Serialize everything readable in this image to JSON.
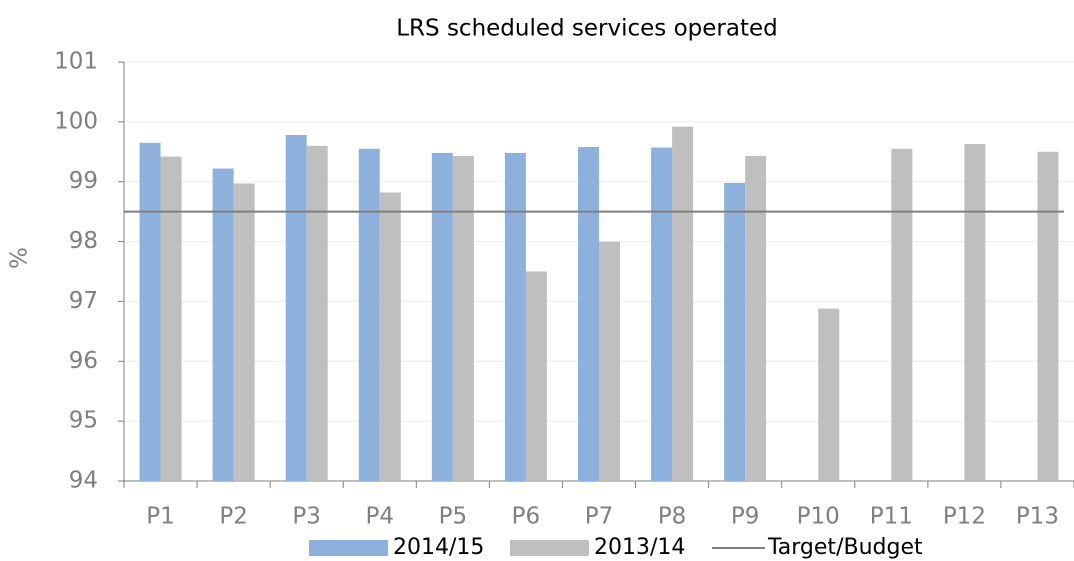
{
  "chart_data": {
    "type": "bar",
    "title": "LRS scheduled services operated",
    "y_label": "%",
    "categories": [
      "P1",
      "P2",
      "P3",
      "P4",
      "P5",
      "P6",
      "P7",
      "P8",
      "P9",
      "P10",
      "P11",
      "P12",
      "P13"
    ],
    "series": [
      {
        "name": "2014/15",
        "color": "#8eb0dc",
        "values": [
          99.65,
          99.22,
          99.78,
          99.55,
          99.48,
          99.48,
          99.58,
          99.57,
          98.98,
          null,
          null,
          null,
          null
        ]
      },
      {
        "name": "2013/14",
        "color": "#bfbfbf",
        "values": [
          99.42,
          98.97,
          99.6,
          98.82,
          99.43,
          97.5,
          98.0,
          99.92,
          99.43,
          96.88,
          99.55,
          99.63,
          99.5
        ]
      }
    ],
    "target": {
      "name": "Target/Budget",
      "value": 98.5,
      "color": "#7f7f7f"
    },
    "ylim": [
      94,
      101
    ],
    "yticks": [
      94,
      95,
      96,
      97,
      98,
      99,
      100,
      101
    ],
    "grid": true
  }
}
